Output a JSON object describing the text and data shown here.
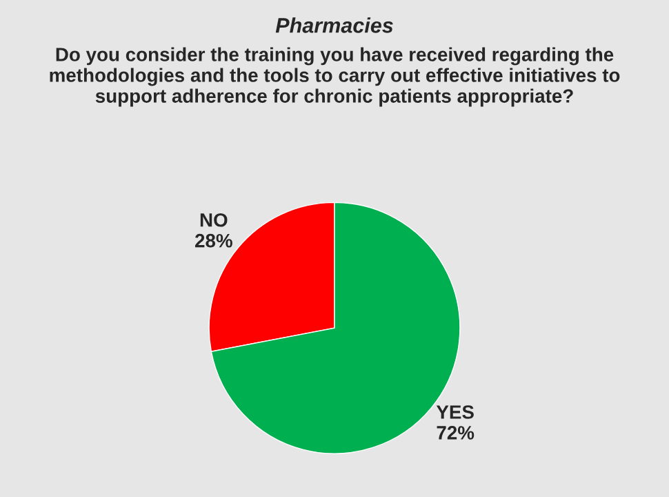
{
  "chart_data": {
    "type": "pie",
    "title": "Pharmacies",
    "subtitle": "Do you consider the training you have received regarding the methodologies and the tools to carry out effective initiatives to support adherence for chronic patients appropriate?",
    "categories": [
      "NO",
      "YES"
    ],
    "values": [
      28,
      72
    ],
    "colors": [
      "#ff0000",
      "#00b050"
    ],
    "value_labels": [
      "28%",
      "72%"
    ],
    "legend": false
  }
}
